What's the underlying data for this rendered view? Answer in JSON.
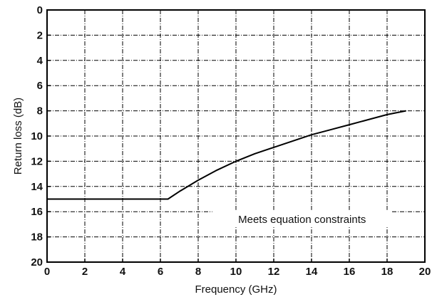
{
  "chart_data": {
    "type": "line",
    "title": "",
    "xlabel": "Frequency (GHz)",
    "ylabel": "Return loss (dB)",
    "xlim": [
      0,
      20
    ],
    "ylim": [
      0,
      20
    ],
    "y_inverted": true,
    "grid": true,
    "grid_style": "dash-dot",
    "x_ticks": [
      0,
      2,
      4,
      6,
      8,
      10,
      12,
      14,
      16,
      18,
      20
    ],
    "y_ticks": [
      0,
      2,
      4,
      6,
      8,
      10,
      12,
      14,
      16,
      18,
      20
    ],
    "series": [
      {
        "color": "#000000",
        "x": [
          0,
          6.4,
          7.0,
          8.0,
          9.0,
          10.0,
          11.0,
          12.0,
          13.0,
          14.0,
          15.0,
          16.0,
          17.0,
          18.0,
          19.0
        ],
        "y": [
          15,
          15,
          14.4,
          13.5,
          12.7,
          12.0,
          11.4,
          10.9,
          10.4,
          9.9,
          9.5,
          9.1,
          8.7,
          8.3,
          8.0
        ]
      }
    ],
    "annotations": [
      {
        "text": "Meets equation constraints",
        "x": 13.5,
        "y": 16.6
      }
    ]
  }
}
